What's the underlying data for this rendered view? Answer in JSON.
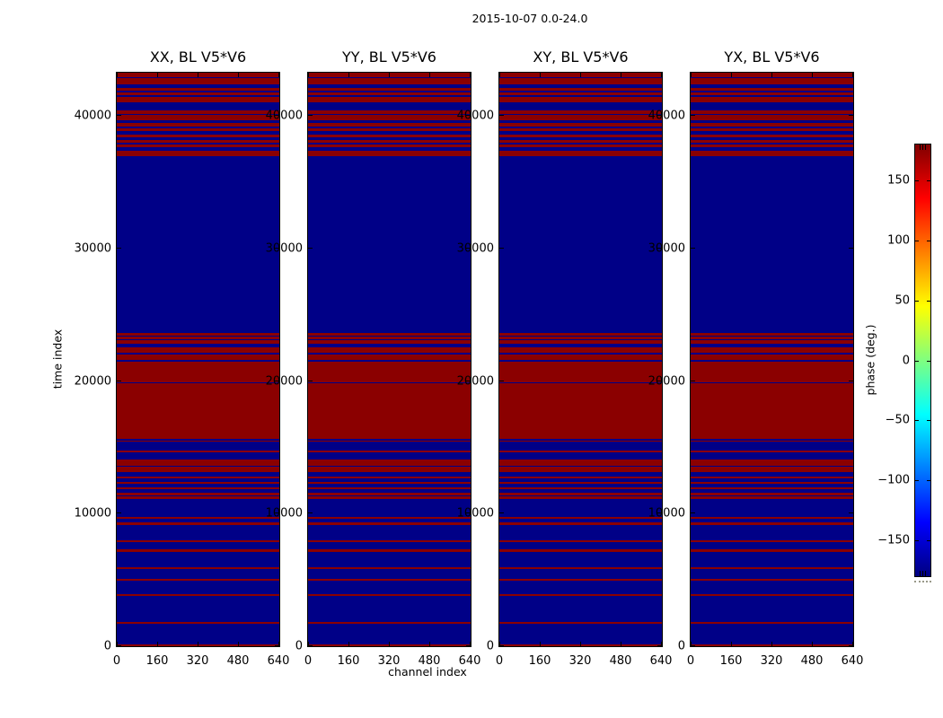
{
  "chart_data": {
    "type": "heatmap",
    "suptitle": "2015-10-07 0.0-24.0",
    "panel_titles": [
      "XX, BL V5*V6",
      "YY, BL V5*V6",
      "XY, BL V5*V6",
      "YX, BL V5*V6"
    ],
    "xlabel": "channel index",
    "ylabel": "time index",
    "xlim": [
      0,
      640
    ],
    "ylim": [
      0,
      43250
    ],
    "xticks": [
      0,
      160,
      320,
      480,
      640
    ],
    "xtick_labels": [
      "0",
      "160",
      "320",
      "480",
      "640"
    ],
    "yticks": [
      0,
      10000,
      20000,
      30000,
      40000
    ],
    "ytick_labels": [
      "0",
      "10000",
      "20000",
      "30000",
      "40000"
    ],
    "grid": false,
    "value_encoding": {
      "red_phase_deg": 180,
      "blue_phase_deg": -180,
      "red_hex": "#8b0000",
      "blue_hex": "#000087"
    },
    "bands_identical_across_panels": true,
    "red_bands_time_index": [
      [
        0,
        140
      ],
      [
        1720,
        1860
      ],
      [
        3820,
        3960
      ],
      [
        4970,
        5110
      ],
      [
        5850,
        5990
      ],
      [
        7140,
        7280
      ],
      [
        7820,
        7960
      ],
      [
        9170,
        9310
      ],
      [
        9640,
        9780
      ],
      [
        11100,
        11300
      ],
      [
        11370,
        11570
      ],
      [
        11840,
        11980
      ],
      [
        12250,
        12390
      ],
      [
        12660,
        12800
      ],
      [
        13130,
        13540
      ],
      [
        13610,
        14080
      ],
      [
        14650,
        14750
      ],
      [
        15430,
        15530
      ],
      [
        15630,
        19830
      ],
      [
        19930,
        21450
      ],
      [
        21560,
        22000
      ],
      [
        22100,
        22540
      ],
      [
        22840,
        23080
      ],
      [
        23180,
        23350
      ],
      [
        23450,
        23620
      ],
      [
        36990,
        37360
      ],
      [
        37660,
        37830
      ],
      [
        38000,
        38170
      ],
      [
        38410,
        38580
      ],
      [
        38880,
        39050
      ],
      [
        39220,
        39460
      ],
      [
        39630,
        40070
      ],
      [
        40140,
        40400
      ],
      [
        41050,
        41420
      ],
      [
        41590,
        41760
      ],
      [
        41930,
        42100
      ],
      [
        42400,
        42840
      ],
      [
        42910,
        43250
      ]
    ],
    "colorbar": {
      "label": "phase (deg.)",
      "vmin": -180,
      "vmax": 180,
      "ticks": [
        150,
        100,
        50,
        0,
        -50,
        -100,
        -150
      ],
      "tick_labels": [
        "150",
        "100",
        "50",
        "0",
        "−50",
        "−100",
        "−150"
      ],
      "colormap": "jet",
      "jet_stops": [
        [
          "#000080",
          0.0
        ],
        [
          "#0000ff",
          0.125
        ],
        [
          "#00ffff",
          0.375
        ],
        [
          "#ffff00",
          0.625
        ],
        [
          "#ff0000",
          0.875
        ],
        [
          "#800000",
          1.0
        ]
      ]
    }
  }
}
